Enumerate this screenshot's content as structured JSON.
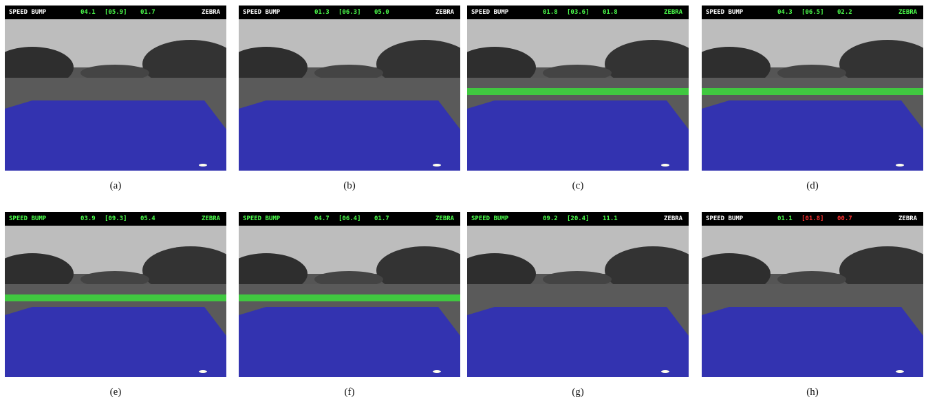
{
  "panels": [
    {
      "caption": "(a)",
      "hud": [
        {
          "text": "SPEED BUMP",
          "color": "#ffffff"
        },
        {
          "text": "04.1",
          "color": "#4cff4c"
        },
        {
          "text": "[05.9]",
          "color": "#4cff4c"
        },
        {
          "text": "01.7",
          "color": "#4cff4c"
        },
        {
          "text": "ZEBRA",
          "color": "#ffffff"
        }
      ]
    },
    {
      "caption": "(b)",
      "hud": [
        {
          "text": "SPEED BUMP",
          "color": "#ffffff"
        },
        {
          "text": "01.3",
          "color": "#4cff4c"
        },
        {
          "text": "[06.3]",
          "color": "#4cff4c"
        },
        {
          "text": "05.0",
          "color": "#4cff4c"
        },
        {
          "text": "ZEBRA",
          "color": "#ffffff"
        }
      ]
    },
    {
      "caption": "(c)",
      "hud": [
        {
          "text": "SPEED BUMP",
          "color": "#ffffff"
        },
        {
          "text": "01.8",
          "color": "#4cff4c"
        },
        {
          "text": "[03.6]",
          "color": "#4cff4c"
        },
        {
          "text": "01.8",
          "color": "#4cff4c"
        },
        {
          "text": "ZEBRA",
          "color": "#4cff4c"
        }
      ]
    },
    {
      "caption": "(d)",
      "hud": [
        {
          "text": "SPEED BUMP",
          "color": "#ffffff"
        },
        {
          "text": "04.3",
          "color": "#4cff4c"
        },
        {
          "text": "[06.5]",
          "color": "#4cff4c"
        },
        {
          "text": "02.2",
          "color": "#4cff4c"
        },
        {
          "text": "ZEBRA",
          "color": "#4cff4c"
        }
      ]
    },
    {
      "caption": "(e)",
      "hud": [
        {
          "text": "SPEED BUMP",
          "color": "#4cff4c"
        },
        {
          "text": "03.9",
          "color": "#4cff4c"
        },
        {
          "text": "[09.3]",
          "color": "#4cff4c"
        },
        {
          "text": "05.4",
          "color": "#4cff4c"
        },
        {
          "text": "ZEBRA",
          "color": "#4cff4c"
        }
      ]
    },
    {
      "caption": "(f)",
      "hud": [
        {
          "text": "SPEED BUMP",
          "color": "#4cff4c"
        },
        {
          "text": "04.7",
          "color": "#4cff4c"
        },
        {
          "text": "[06.4]",
          "color": "#4cff4c"
        },
        {
          "text": "01.7",
          "color": "#4cff4c"
        },
        {
          "text": "ZEBRA",
          "color": "#4cff4c"
        }
      ]
    },
    {
      "caption": "(g)",
      "hud": [
        {
          "text": "SPEED BUMP",
          "color": "#4cff4c"
        },
        {
          "text": "09.2",
          "color": "#4cff4c"
        },
        {
          "text": "[20.4]",
          "color": "#4cff4c"
        },
        {
          "text": "11.1",
          "color": "#4cff4c"
        },
        {
          "text": "ZEBRA",
          "color": "#ffffff"
        }
      ]
    },
    {
      "caption": "(h)",
      "hud": [
        {
          "text": "SPEED BUMP",
          "color": "#ffffff"
        },
        {
          "text": "01.1",
          "color": "#4cff4c"
        },
        {
          "text": "[01.8]",
          "color": "#ff3030"
        },
        {
          "text": "00.7",
          "color": "#ff3030"
        },
        {
          "text": "ZEBRA",
          "color": "#ffffff"
        }
      ]
    }
  ]
}
